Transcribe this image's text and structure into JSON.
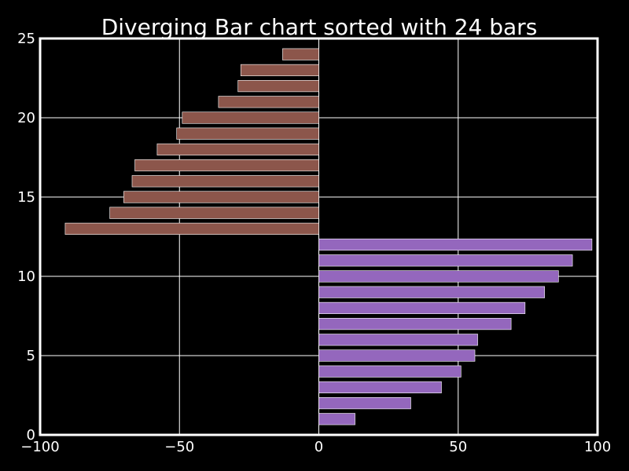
{
  "chart_data": {
    "type": "bar",
    "orientation": "horizontal",
    "title": "Diverging Bar chart sorted with 24 bars",
    "xlabel": "",
    "ylabel": "",
    "xlim": [
      -100,
      100
    ],
    "ylim": [
      0,
      25
    ],
    "grid": true,
    "x_ticks": [
      -100,
      -50,
      0,
      50,
      100
    ],
    "x_tick_labels": [
      "−100",
      "−50",
      "0",
      "50",
      "100"
    ],
    "y_ticks": [
      0,
      5,
      10,
      15,
      20,
      25
    ],
    "y_tick_labels": [
      "0",
      "5",
      "10",
      "15",
      "20",
      "25"
    ],
    "positive_color": "#9467bd",
    "negative_color": "#8c564b",
    "background_color": "#000000",
    "bars": [
      {
        "y": 1,
        "value": 13
      },
      {
        "y": 2,
        "value": 33
      },
      {
        "y": 3,
        "value": 44
      },
      {
        "y": 4,
        "value": 51
      },
      {
        "y": 5,
        "value": 56
      },
      {
        "y": 6,
        "value": 57
      },
      {
        "y": 7,
        "value": 69
      },
      {
        "y": 8,
        "value": 74
      },
      {
        "y": 9,
        "value": 81
      },
      {
        "y": 10,
        "value": 86
      },
      {
        "y": 11,
        "value": 91
      },
      {
        "y": 12,
        "value": 98
      },
      {
        "y": 13,
        "value": -91
      },
      {
        "y": 14,
        "value": -75
      },
      {
        "y": 15,
        "value": -70
      },
      {
        "y": 16,
        "value": -67
      },
      {
        "y": 17,
        "value": -66
      },
      {
        "y": 18,
        "value": -58
      },
      {
        "y": 19,
        "value": -51
      },
      {
        "y": 20,
        "value": -49
      },
      {
        "y": 21,
        "value": -36
      },
      {
        "y": 22,
        "value": -29
      },
      {
        "y": 23,
        "value": -28
      },
      {
        "y": 24,
        "value": -13
      }
    ]
  }
}
